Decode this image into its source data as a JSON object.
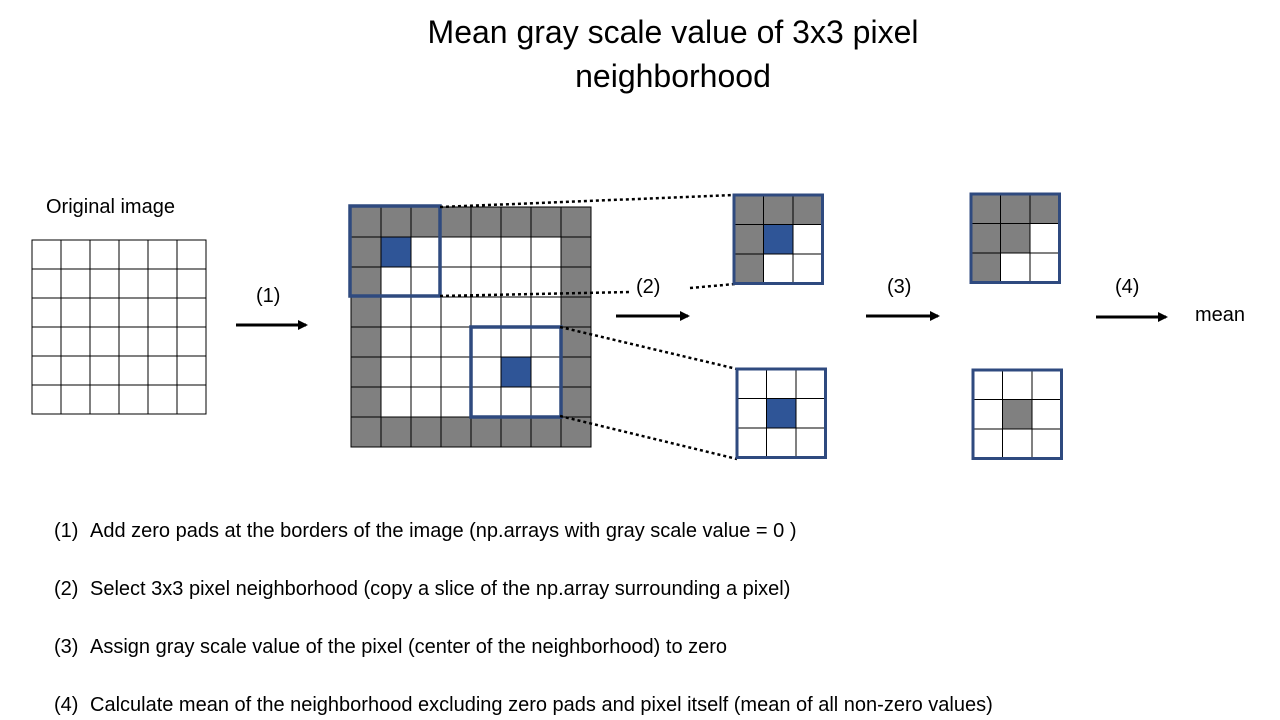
{
  "title": {
    "line1": "Mean gray scale value of 3x3 pixel",
    "line2": "neighborhood"
  },
  "labels": {
    "original_image": "Original image",
    "step1": "(1)",
    "step2": "(2)",
    "step3": "(3)",
    "step4": "(4)",
    "mean": "mean"
  },
  "colors": {
    "pad_gray": "#808080",
    "pixel_blue": "#2F5597",
    "frame_blue": "#2F4A7F",
    "grid_line": "#000000"
  },
  "steps": [
    {
      "number": "(1)",
      "text": "Add zero pads at the borders of the image  (np.arrays with gray scale value = 0 )"
    },
    {
      "number": "(2)",
      "text": "Select 3x3 pixel neighborhood (copy a slice of the np.array surrounding a pixel)"
    },
    {
      "number": "(3)",
      "text": "Assign gray scale value of the pixel (center of the neighborhood) to zero"
    },
    {
      "number": "(4)",
      "text": "Calculate mean of the neighborhood excluding zero pads and pixel itself (mean of all non-zero values)"
    }
  ]
}
